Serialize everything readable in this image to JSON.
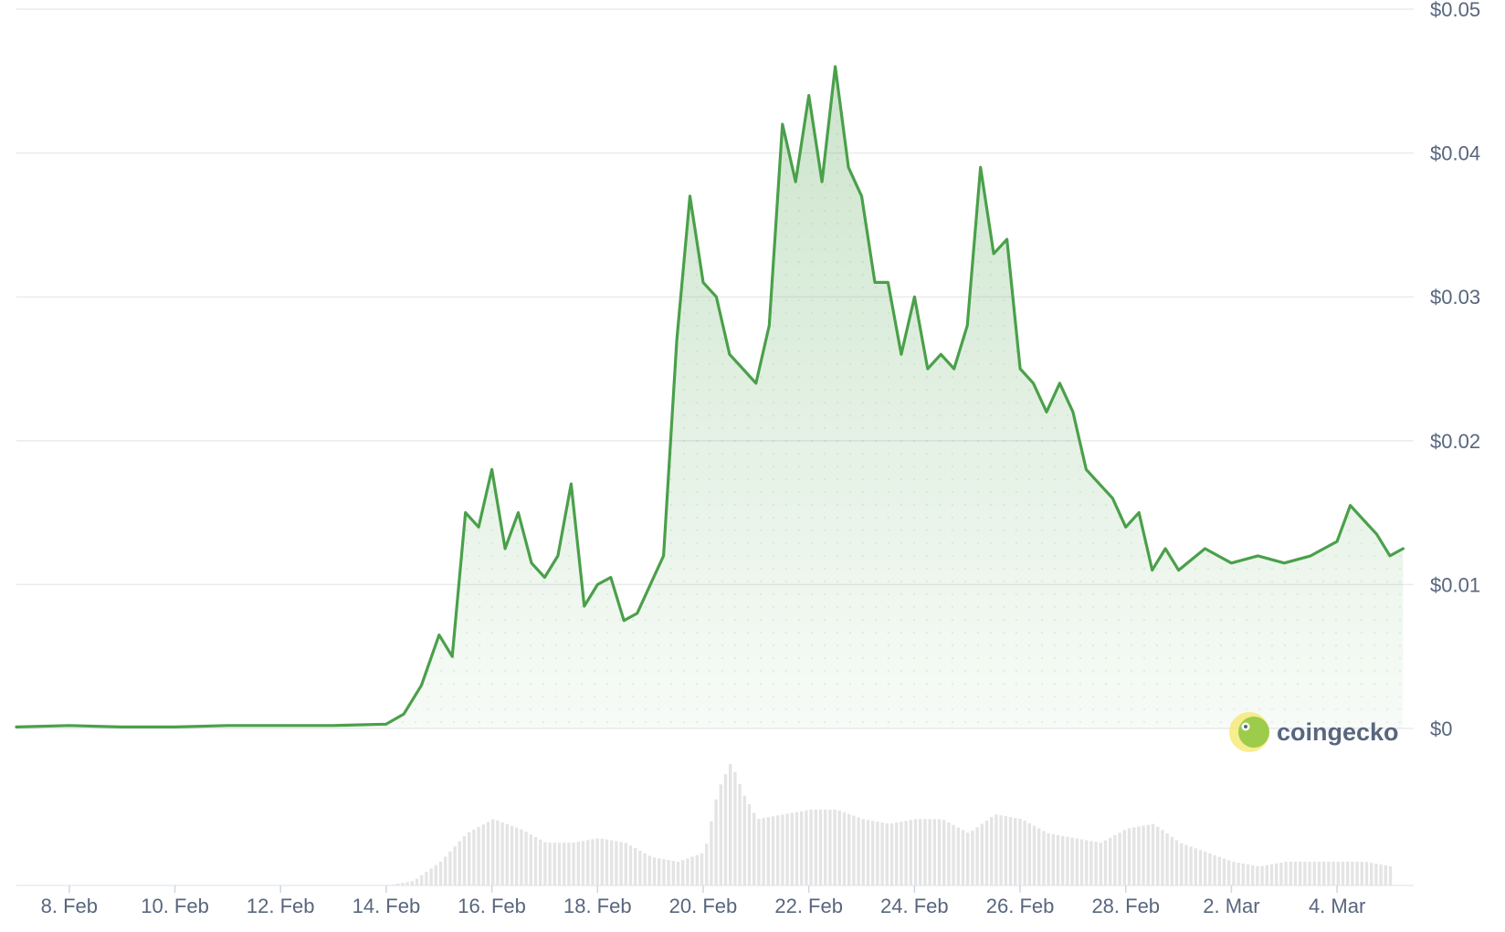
{
  "chart_data": {
    "type": "area",
    "title": "",
    "xlabel": "",
    "ylabel": "",
    "x_ticks": [
      "8. Feb",
      "10. Feb",
      "12. Feb",
      "14. Feb",
      "16. Feb",
      "18. Feb",
      "20. Feb",
      "22. Feb",
      "24. Feb",
      "26. Feb",
      "28. Feb",
      "2. Mar",
      "4. Mar"
    ],
    "y_ticks": [
      "$0",
      "$0.01",
      "$0.02",
      "$0.03",
      "$0.04",
      "$0.05"
    ],
    "ylim": [
      0,
      0.05
    ],
    "xlim": [
      "2024-02-07",
      "2024-03-04"
    ],
    "grid": true,
    "legend": "none",
    "colors": {
      "line": "#4aa04a",
      "fill": "#dff2df",
      "volume": "#e4e4e4",
      "grid": "#e9ecef",
      "text": "#58667e"
    },
    "series": [
      {
        "x": [
          "2024-02-07",
          "2024-02-08",
          "2024-02-09",
          "2024-02-10",
          "2024-02-11",
          "2024-02-12",
          "2024-02-13",
          "2024-02-14",
          "2024-02-14 08:00",
          "2024-02-14 16:00",
          "2024-02-15",
          "2024-02-15 06:00",
          "2024-02-15 12:00",
          "2024-02-15 18:00",
          "2024-02-16",
          "2024-02-16 06:00",
          "2024-02-16 12:00",
          "2024-02-16 18:00",
          "2024-02-17",
          "2024-02-17 06:00",
          "2024-02-17 12:00",
          "2024-02-17 18:00",
          "2024-02-18",
          "2024-02-18 06:00",
          "2024-02-18 12:00",
          "2024-02-18 18:00",
          "2024-02-19",
          "2024-02-19 06:00",
          "2024-02-19 12:00",
          "2024-02-19 18:00",
          "2024-02-20",
          "2024-02-20 06:00",
          "2024-02-20 12:00",
          "2024-02-20 18:00",
          "2024-02-21",
          "2024-02-21 06:00",
          "2024-02-21 12:00",
          "2024-02-21 18:00",
          "2024-02-22",
          "2024-02-22 06:00",
          "2024-02-22 12:00",
          "2024-02-22 18:00",
          "2024-02-23",
          "2024-02-23 06:00",
          "2024-02-23 12:00",
          "2024-02-23 18:00",
          "2024-02-24",
          "2024-02-24 06:00",
          "2024-02-24 12:00",
          "2024-02-24 18:00",
          "2024-02-25",
          "2024-02-25 06:00",
          "2024-02-25 12:00",
          "2024-02-25 18:00",
          "2024-02-26",
          "2024-02-26 06:00",
          "2024-02-26 12:00",
          "2024-02-26 18:00",
          "2024-02-27",
          "2024-02-27 06:00",
          "2024-02-27 12:00",
          "2024-02-27 18:00",
          "2024-02-28",
          "2024-02-28 06:00",
          "2024-02-28 12:00",
          "2024-02-28 18:00",
          "2024-02-29",
          "2024-02-29 12:00",
          "2024-03-01",
          "2024-03-01 12:00",
          "2024-03-02",
          "2024-03-02 12:00",
          "2024-03-03",
          "2024-03-03 06:00",
          "2024-03-03 12:00",
          "2024-03-03 18:00",
          "2024-03-04",
          "2024-03-04 06:00"
        ],
        "y": [
          0.0001,
          0.0002,
          0.0001,
          0.0001,
          0.0002,
          0.0002,
          0.0002,
          0.0003,
          0.001,
          0.003,
          0.0065,
          0.005,
          0.015,
          0.014,
          0.018,
          0.0125,
          0.015,
          0.0115,
          0.0105,
          0.012,
          0.017,
          0.0085,
          0.01,
          0.0105,
          0.0075,
          0.008,
          0.01,
          0.012,
          0.027,
          0.037,
          0.031,
          0.03,
          0.026,
          0.025,
          0.024,
          0.028,
          0.042,
          0.038,
          0.044,
          0.038,
          0.046,
          0.039,
          0.037,
          0.031,
          0.031,
          0.026,
          0.03,
          0.025,
          0.026,
          0.025,
          0.028,
          0.039,
          0.033,
          0.034,
          0.025,
          0.024,
          0.022,
          0.024,
          0.022,
          0.018,
          0.017,
          0.016,
          0.014,
          0.015,
          0.011,
          0.0125,
          0.011,
          0.0125,
          0.0115,
          0.012,
          0.0115,
          0.012,
          0.013,
          0.0155,
          0.0145,
          0.0135,
          0.012,
          0.0125
        ]
      }
    ],
    "volume": {
      "x": [
        "2024-02-07",
        "2024-02-13",
        "2024-02-14",
        "2024-02-14 12:00",
        "2024-02-15",
        "2024-02-15 12:00",
        "2024-02-16",
        "2024-02-16 12:00",
        "2024-02-17",
        "2024-02-17 12:00",
        "2024-02-18",
        "2024-02-18 12:00",
        "2024-02-19",
        "2024-02-19 12:00",
        "2024-02-20",
        "2024-02-20 06:00",
        "2024-02-20 12:00",
        "2024-02-20 18:00",
        "2024-02-21",
        "2024-02-21 12:00",
        "2024-02-22",
        "2024-02-22 12:00",
        "2024-02-23",
        "2024-02-23 12:00",
        "2024-02-24",
        "2024-02-24 12:00",
        "2024-02-25",
        "2024-02-25 12:00",
        "2024-02-26",
        "2024-02-26 12:00",
        "2024-02-27",
        "2024-02-27 12:00",
        "2024-02-28",
        "2024-02-28 12:00",
        "2024-02-29",
        "2024-02-29 12:00",
        "2024-03-01",
        "2024-03-01 12:00",
        "2024-03-02",
        "2024-03-02 12:00",
        "2024-03-03",
        "2024-03-03 12:00",
        "2024-03-04"
      ],
      "values": [
        0,
        0,
        0,
        5,
        25,
        55,
        70,
        60,
        45,
        45,
        50,
        45,
        30,
        25,
        35,
        100,
        130,
        95,
        70,
        75,
        80,
        80,
        70,
        65,
        70,
        70,
        55,
        75,
        70,
        55,
        50,
        45,
        60,
        65,
        45,
        35,
        25,
        20,
        25,
        25,
        25,
        25,
        20
      ]
    }
  },
  "watermark": {
    "text": "coingecko"
  }
}
